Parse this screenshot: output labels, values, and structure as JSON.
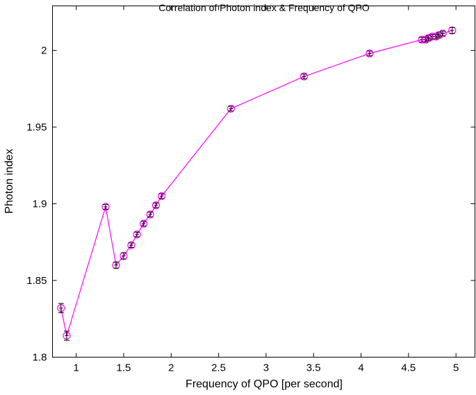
{
  "chart_data": {
    "type": "scatter",
    "title": "Correlation of Photon index & Frequency of QPO",
    "xlabel": "Frequency of QPO [per second]",
    "ylabel": "Photon index",
    "xlim": [
      0.75,
      5.2
    ],
    "ylim": [
      1.8,
      2.029
    ],
    "xticks": [
      1,
      1.5,
      2,
      2.5,
      3,
      3.5,
      4,
      4.5,
      5
    ],
    "xtick_labels": [
      "1",
      "1.5",
      "2",
      "2.5",
      "3",
      "3.5",
      "4",
      "4.5",
      "5"
    ],
    "yticks": [
      1.8,
      1.85,
      1.9,
      1.95,
      2.0
    ],
    "ytick_labels": [
      "1.8",
      "1.85",
      "1.9",
      "1.95",
      "2"
    ],
    "grid": false,
    "line_color": "#ff00ff",
    "marker_color": "#ff00ff",
    "errorbar_color": "#000000",
    "series": [
      {
        "name": "Photon index",
        "x": [
          0.84,
          0.9,
          1.31,
          1.42,
          1.5,
          1.58,
          1.64,
          1.71,
          1.78,
          1.84,
          1.9,
          2.63,
          3.4,
          4.09,
          4.64,
          4.68,
          4.71,
          4.75,
          4.79,
          4.82,
          4.86,
          4.96
        ],
        "y": [
          1.832,
          1.814,
          1.898,
          1.86,
          1.866,
          1.873,
          1.88,
          1.887,
          1.893,
          1.899,
          1.905,
          1.962,
          1.983,
          1.998,
          2.007,
          2.007,
          2.008,
          2.009,
          2.009,
          2.01,
          2.011,
          2.013
        ],
        "yerr": [
          0.003,
          0.003,
          0.0015,
          0.002,
          0.002,
          0.0015,
          0.0015,
          0.0015,
          0.0015,
          0.0015,
          0.0015,
          0.0015,
          0.0015,
          0.0015,
          0.0015,
          0.0015,
          0.0015,
          0.0015,
          0.0015,
          0.0015,
          0.0015,
          0.002
        ],
        "xerr": [
          0.02,
          0.02,
          0.02,
          0.02,
          0.02,
          0.02,
          0.02,
          0.02,
          0.02,
          0.02,
          0.02,
          0.02,
          0.02,
          0.02,
          0.02,
          0.02,
          0.02,
          0.02,
          0.02,
          0.02,
          0.02,
          0.02
        ]
      }
    ]
  }
}
